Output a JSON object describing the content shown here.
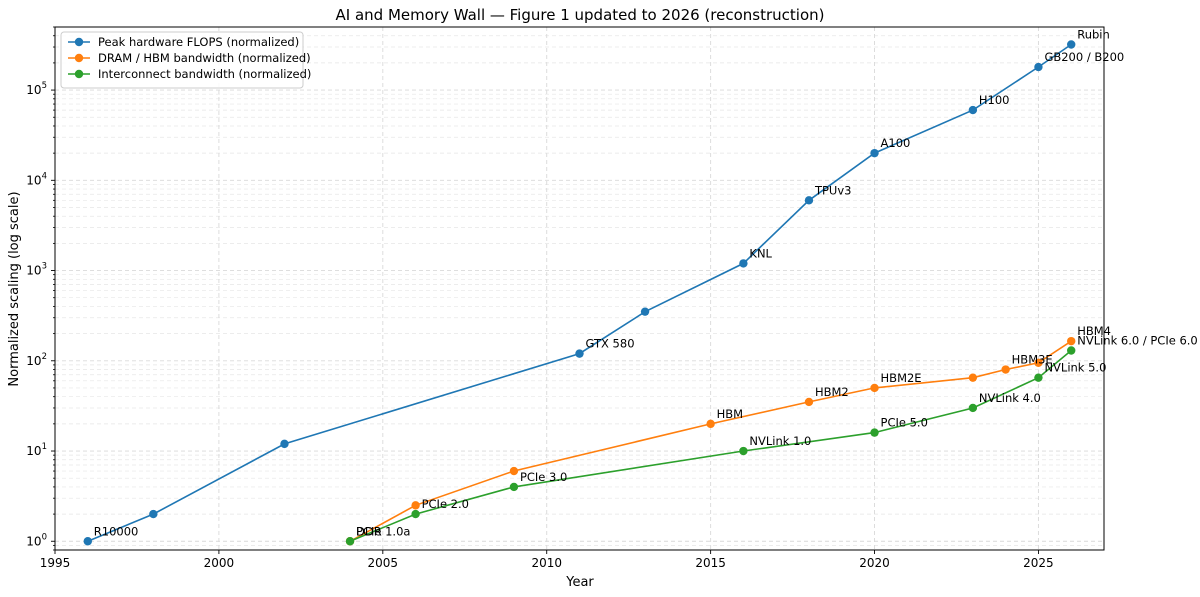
{
  "chart_data": {
    "type": "line",
    "title": "AI and Memory Wall — Figure 1 updated to 2026 (reconstruction)",
    "xlabel": "Year",
    "ylabel": "Normalized scaling (log scale)",
    "xlim": [
      1995,
      2027
    ],
    "ylim": [
      0.8,
      500000
    ],
    "yscale": "log",
    "x_ticks": [
      "1995",
      "2000",
      "2005",
      "2010",
      "2015",
      "2020",
      "2025"
    ],
    "y_ticks": [
      {
        "value": 1,
        "base": "10",
        "exp": "0"
      },
      {
        "value": 10,
        "base": "10",
        "exp": "1"
      },
      {
        "value": 100,
        "base": "10",
        "exp": "2"
      },
      {
        "value": 1000,
        "base": "10",
        "exp": "3"
      },
      {
        "value": 10000,
        "base": "10",
        "exp": "4"
      },
      {
        "value": 100000,
        "base": "10",
        "exp": "5"
      }
    ],
    "grid": true,
    "legend_position": "top-left",
    "series": [
      {
        "name": "Peak hardware FLOPS (normalized)",
        "color": "#1f77b4",
        "points": [
          {
            "x": 1996,
            "y": 1,
            "label": "R10000"
          },
          {
            "x": 1998,
            "y": 2,
            "label": ""
          },
          {
            "x": 2002,
            "y": 12,
            "label": ""
          },
          {
            "x": 2011,
            "y": 120,
            "label": "GTX 580"
          },
          {
            "x": 2013,
            "y": 350,
            "label": ""
          },
          {
            "x": 2016,
            "y": 1200,
            "label": "KNL"
          },
          {
            "x": 2018,
            "y": 6000,
            "label": "TPUv3"
          },
          {
            "x": 2020,
            "y": 20000,
            "label": "A100"
          },
          {
            "x": 2023,
            "y": 60000,
            "label": "H100"
          },
          {
            "x": 2025,
            "y": 180000,
            "label": "GB200 / B200"
          },
          {
            "x": 2026,
            "y": 320000,
            "label": "Rubin"
          }
        ]
      },
      {
        "name": "DRAM / HBM bandwidth (normalized)",
        "color": "#ff7f0e",
        "points": [
          {
            "x": 2004,
            "y": 1,
            "label": "DDR"
          },
          {
            "x": 2006,
            "y": 2.5,
            "label": ""
          },
          {
            "x": 2009,
            "y": 6,
            "label": ""
          },
          {
            "x": 2015,
            "y": 20,
            "label": "HBM"
          },
          {
            "x": 2018,
            "y": 35,
            "label": "HBM2"
          },
          {
            "x": 2020,
            "y": 50,
            "label": "HBM2E"
          },
          {
            "x": 2023,
            "y": 65,
            "label": ""
          },
          {
            "x": 2024,
            "y": 80,
            "label": "HBM3E"
          },
          {
            "x": 2025,
            "y": 95,
            "label": ""
          },
          {
            "x": 2026,
            "y": 165,
            "label": "HBM4"
          }
        ]
      },
      {
        "name": "Interconnect bandwidth (normalized)",
        "color": "#2ca02c",
        "points": [
          {
            "x": 2004,
            "y": 1,
            "label": "PCIe 1.0a"
          },
          {
            "x": 2006,
            "y": 2,
            "label": "PCIe 2.0"
          },
          {
            "x": 2009,
            "y": 4,
            "label": "PCIe 3.0"
          },
          {
            "x": 2016,
            "y": 10,
            "label": "NVLink 1.0"
          },
          {
            "x": 2020,
            "y": 16,
            "label": "PCIe 5.0"
          },
          {
            "x": 2023,
            "y": 30,
            "label": "NVLink 4.0"
          },
          {
            "x": 2025,
            "y": 65,
            "label": "NVLink 5.0"
          },
          {
            "x": 2026,
            "y": 130,
            "label": "NVLink 6.0 / PCIe 6.0"
          }
        ]
      }
    ]
  }
}
